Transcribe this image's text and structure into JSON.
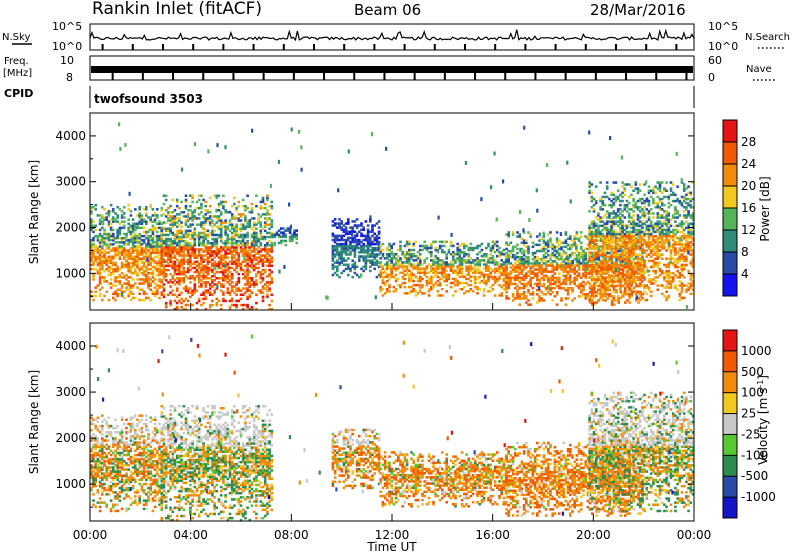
{
  "header": {
    "station": "Rankin Inlet (fitACF)",
    "beam": "Beam 06",
    "date": "28/Mar/2016"
  },
  "nsky_panel": {
    "left_label": "N.Sky",
    "right_label": "N.Search",
    "left_ticks": [
      "10^5",
      "10^0"
    ],
    "right_ticks": [
      "10^5",
      "10^0"
    ]
  },
  "freq_panel": {
    "left_label_line1": "Freq.",
    "left_label_line2": "[MHz]",
    "right_label": "Nave",
    "left_ticks": [
      "10",
      "8"
    ],
    "right_ticks": [
      "60",
      "0"
    ]
  },
  "cpid_panel": {
    "label": "CPID",
    "program": "twofsound 3503"
  },
  "colors": {
    "power_scale": [
      "#1414f0",
      "#2a4aa8",
      "#2e8c78",
      "#55b45a",
      "#f0c81e",
      "#f08c0a",
      "#f05a00",
      "#e61414"
    ],
    "velocity_scale": [
      "#e61414",
      "#f05a00",
      "#f08c0a",
      "#f0c81e",
      "#c8c8c8",
      "#55c832",
      "#2e8c50",
      "#2a4aa8",
      "#1414c8"
    ]
  },
  "chart_data": [
    {
      "type": "heatmap",
      "quantity": "power",
      "ylabel": "Slant Range [km]",
      "yticks": [
        1000,
        2000,
        3000,
        4000
      ],
      "ylim": [
        200,
        4500
      ],
      "xlim_hours": [
        0,
        24
      ],
      "colorbar": {
        "label": "Power [dB]",
        "ticks": [
          "4",
          "8",
          "12",
          "16",
          "20",
          "24",
          "28"
        ],
        "range": [
          0,
          32
        ]
      },
      "echo_regions": [
        {
          "t_start": 0.0,
          "t_end": 2.8,
          "r_min": 400,
          "r_max": 2500,
          "peak_value": 26
        },
        {
          "t_start": 2.8,
          "t_end": 7.2,
          "r_min": 200,
          "r_max": 2700,
          "peak_value": 30
        },
        {
          "t_start": 7.2,
          "t_end": 8.2,
          "r_min": 1600,
          "r_max": 2000,
          "peak_value": 14
        },
        {
          "t_start": 9.6,
          "t_end": 11.5,
          "r_min": 900,
          "r_max": 2200,
          "peak_value": 10
        },
        {
          "t_start": 11.5,
          "t_end": 16.5,
          "r_min": 500,
          "r_max": 1700,
          "peak_value": 26
        },
        {
          "t_start": 16.5,
          "t_end": 22.0,
          "r_min": 300,
          "r_max": 1900,
          "peak_value": 28
        },
        {
          "t_start": 19.8,
          "t_end": 24.0,
          "r_min": 400,
          "r_max": 3000,
          "peak_value": 26
        }
      ]
    },
    {
      "type": "heatmap",
      "quantity": "velocity",
      "ylabel": "Slant Range [km]",
      "xlabel": "Time UT",
      "xticks": [
        "00:00",
        "04:00",
        "08:00",
        "12:00",
        "16:00",
        "20:00",
        "00:00"
      ],
      "yticks": [
        1000,
        2000,
        3000,
        4000
      ],
      "ylim": [
        200,
        4500
      ],
      "xlim_hours": [
        0,
        24
      ],
      "colorbar": {
        "label": "Velocity [m s^-1]",
        "ticks": [
          "1000",
          "500",
          "100",
          "25",
          "-25",
          "-100",
          "-500",
          "-1000"
        ]
      },
      "echo_regions": [
        {
          "t_start": 0.0,
          "t_end": 2.8,
          "r_min": 400,
          "r_max": 2500,
          "dominant_velocity": -200
        },
        {
          "t_start": 2.8,
          "t_end": 7.2,
          "r_min": 200,
          "r_max": 2700,
          "dominant_velocity": 0
        },
        {
          "t_start": 9.6,
          "t_end": 11.5,
          "r_min": 900,
          "r_max": 2200,
          "dominant_velocity": -300
        },
        {
          "t_start": 11.5,
          "t_end": 16.5,
          "r_min": 500,
          "r_max": 1700,
          "dominant_velocity": -300
        },
        {
          "t_start": 16.5,
          "t_end": 22.0,
          "r_min": 300,
          "r_max": 1900,
          "dominant_velocity": -400
        },
        {
          "t_start": 19.8,
          "t_end": 24.0,
          "r_min": 400,
          "r_max": 3000,
          "dominant_velocity": 0
        }
      ]
    }
  ]
}
